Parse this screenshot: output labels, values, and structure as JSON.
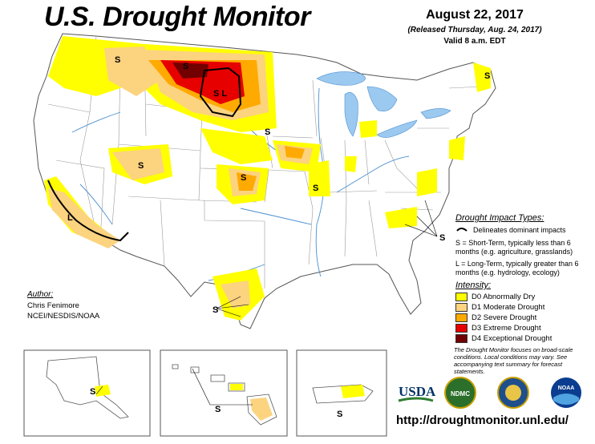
{
  "header": {
    "title": "U.S. Drought Monitor",
    "date": "August 22, 2017",
    "released": "(Released Thursday, Aug. 24, 2017)",
    "valid": "Valid 8 a.m. EDT"
  },
  "map_labels": {
    "s": "S",
    "l": "L",
    "sl": "S L"
  },
  "impact_types": {
    "title": "Drought Impact Types:",
    "delineates": "Delineates dominant impacts",
    "short_term": "S = Short-Term, typically less than 6 months (e.g. agriculture, grasslands)",
    "long_term": "L = Long-Term, typically greater than 6 months (e.g. hydrology, ecology)"
  },
  "intensity": {
    "title": "Intensity:",
    "levels": [
      {
        "label": "D0 Abnormally Dry",
        "color": "#ffff00"
      },
      {
        "label": "D1 Moderate Drought",
        "color": "#fcd37f"
      },
      {
        "label": "D2 Severe Drought",
        "color": "#ffaa00"
      },
      {
        "label": "D3 Extreme Drought",
        "color": "#e60000"
      },
      {
        "label": "D4 Exceptional Drought",
        "color": "#730000"
      }
    ]
  },
  "note": "The Drought Monitor focuses on broad-scale conditions. Local conditions may vary. See accompanying text summary for forecast statements.",
  "author": {
    "label": "Author:",
    "name": "Chris Fenimore",
    "org": "NCEI/NESDIS/NOAA"
  },
  "logos": {
    "usda": "USDA",
    "ndmc": "NDMC",
    "noaa": "NOAA",
    "commerce": "DEPT OF COMMERCE"
  },
  "url": "http://droughtmonitor.unl.edu/",
  "colors": {
    "water": "#9cc9f0",
    "river": "#4a8fd0",
    "boundary": "#888888",
    "d0": "#ffff00",
    "d1": "#fcd37f",
    "d2": "#ffaa00",
    "d3": "#e60000",
    "d4": "#730000"
  }
}
